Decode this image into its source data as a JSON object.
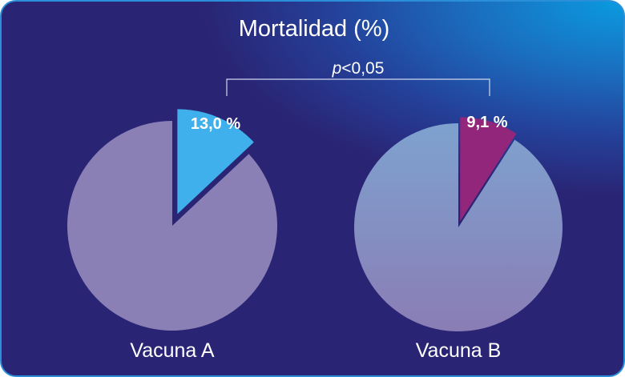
{
  "chart_data": {
    "type": "pie",
    "title": "Mortalidad (%)",
    "significance": {
      "prefix": "p",
      "text": "<0,05"
    },
    "charts": [
      {
        "name": "Vacuna A",
        "value": 13.0,
        "value_label": "13,0 %",
        "color": "#3fb0ec",
        "rest_color": "#8b80b6"
      },
      {
        "name": "Vacuna B",
        "value": 9.1,
        "value_label": "9,1 %",
        "color": "#92267a",
        "rest_color": "#8b80b6"
      }
    ],
    "unit": "%"
  }
}
